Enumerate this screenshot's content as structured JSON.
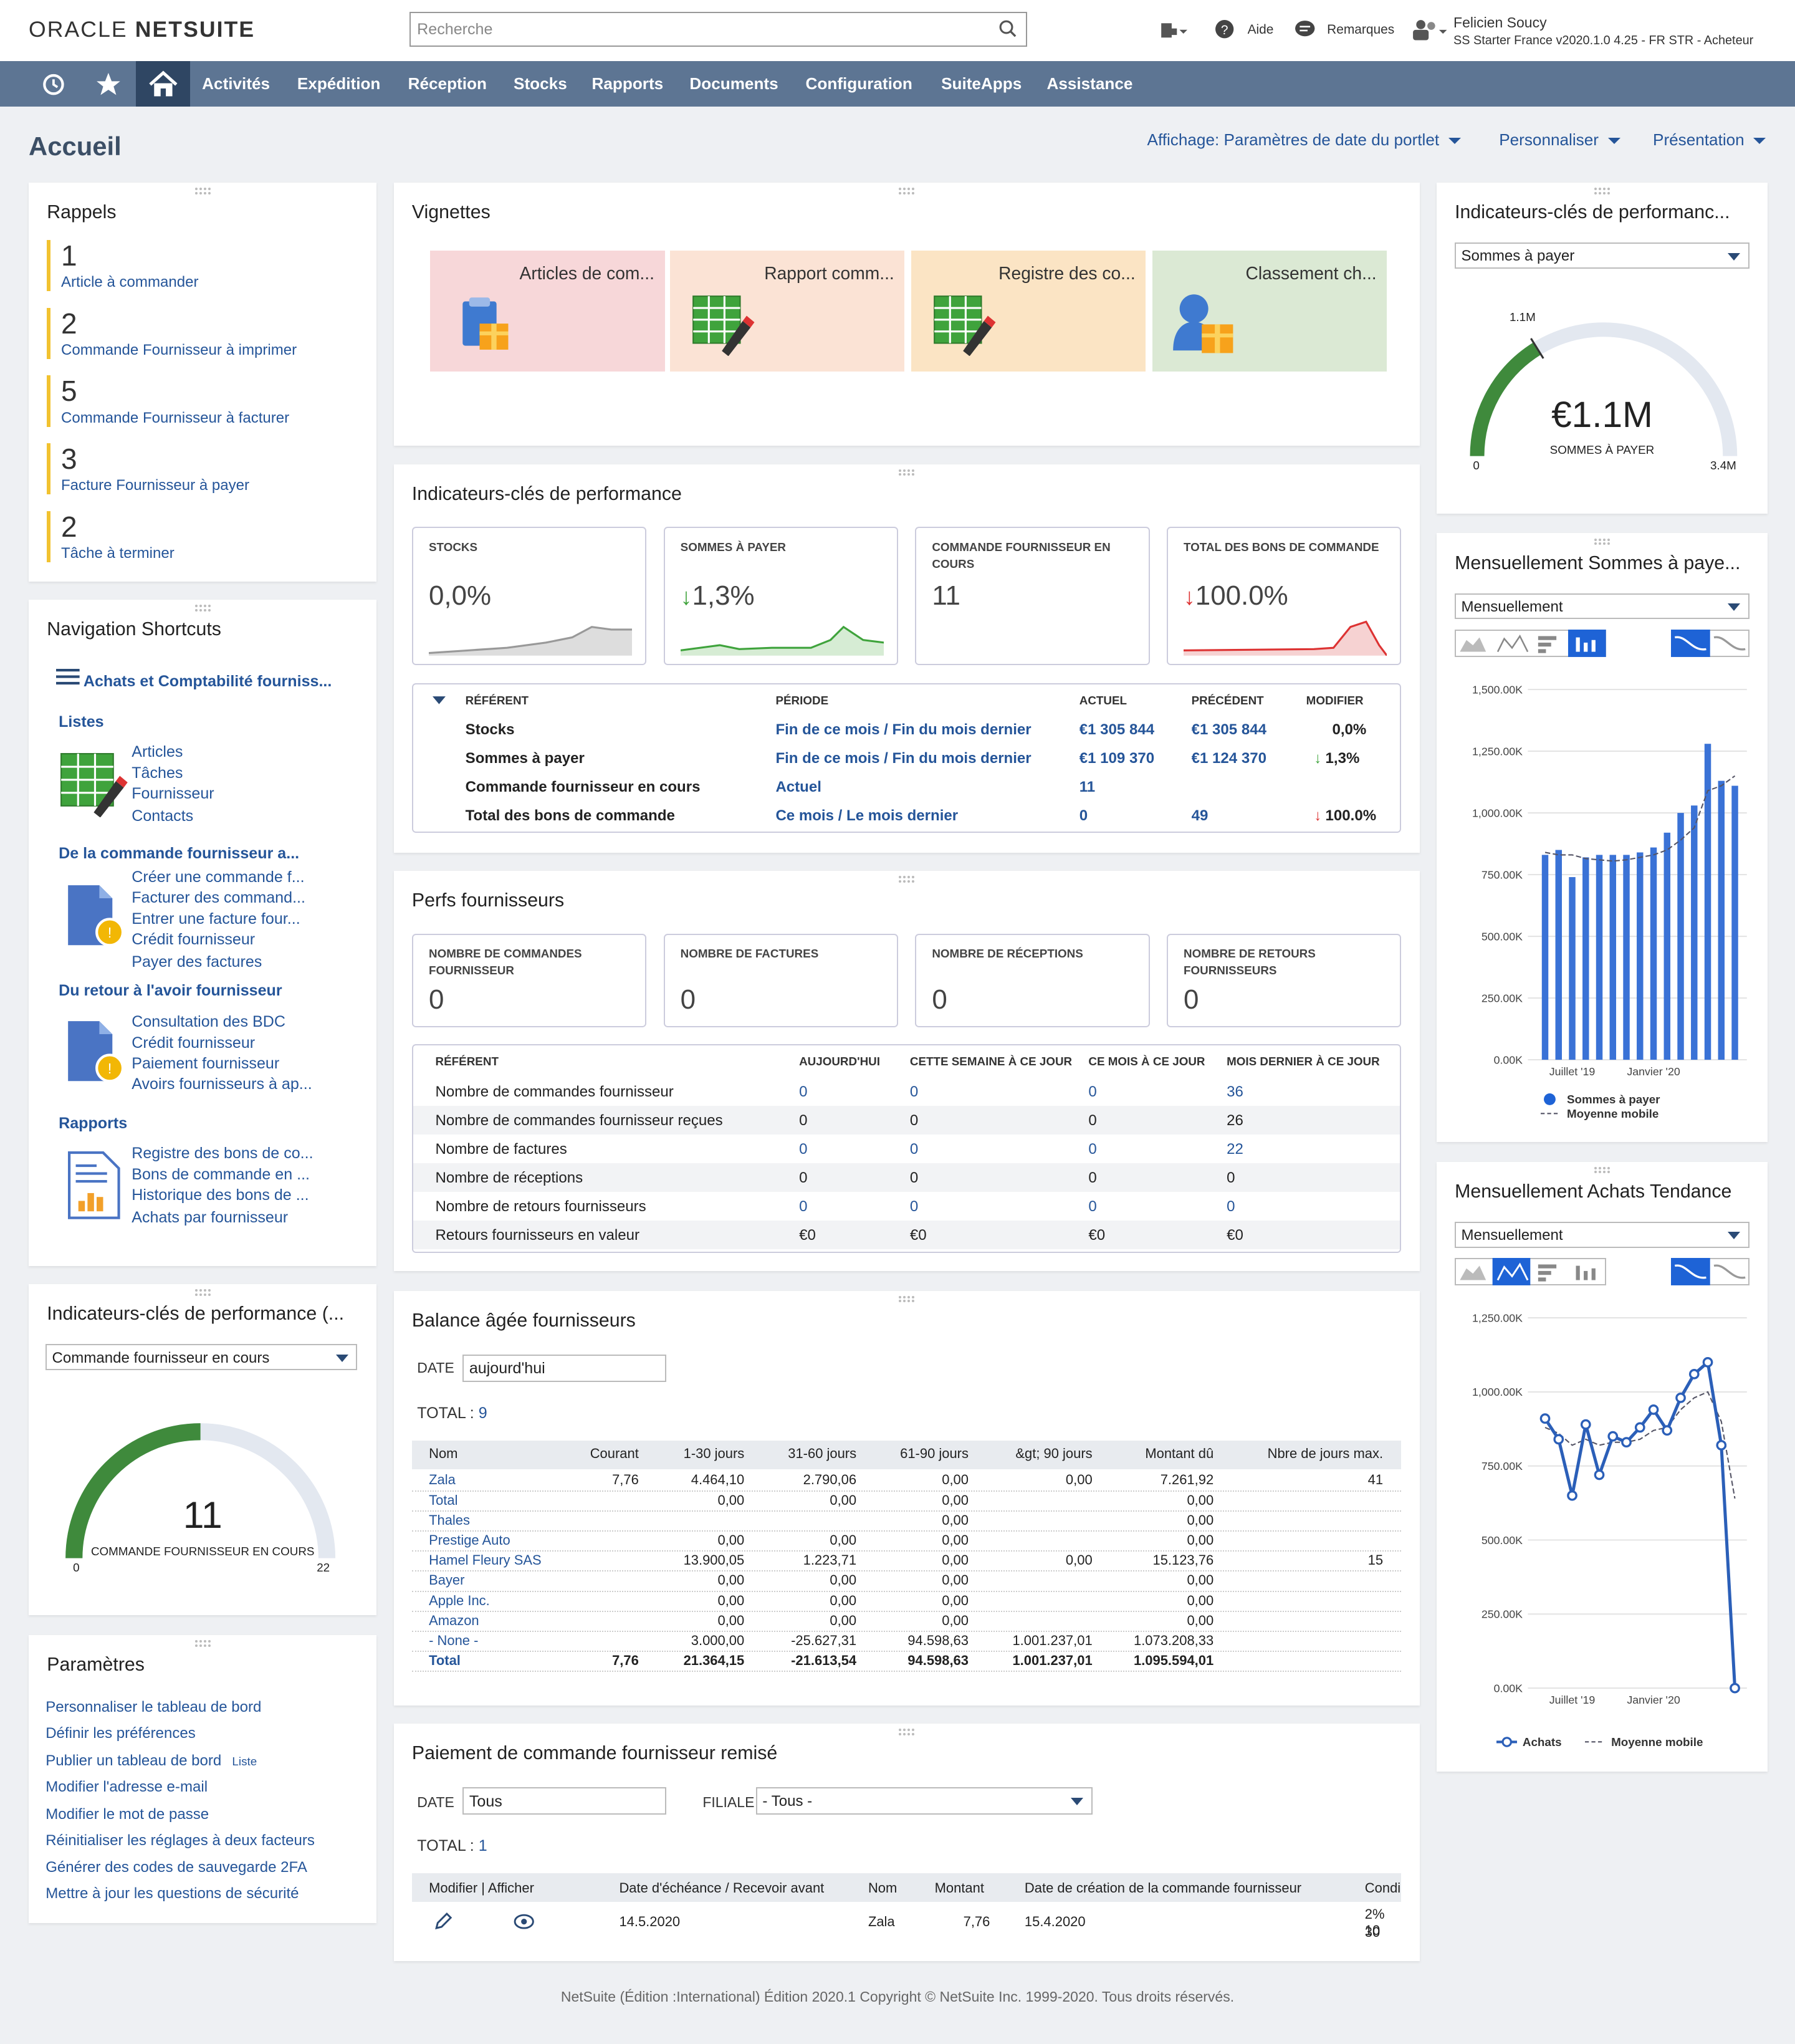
{
  "header": {
    "logo_oracle": "ORACLE",
    "logo_netsuite": "NETSUITE",
    "search_placeholder": "Recherche",
    "help": "Aide",
    "feedback": "Remarques",
    "user_name": "Felicien Soucy",
    "user_role": "SS Starter France v2020.1.0 4.25 - FR STR - Acheteur"
  },
  "nav": {
    "items": [
      "Activités",
      "Expédition",
      "Réception",
      "Stocks",
      "Rapports",
      "Documents",
      "Configuration",
      "SuiteApps",
      "Assistance"
    ]
  },
  "page": {
    "title": "Accueil",
    "view": "Affichage: Paramètres de date du portlet",
    "customize": "Personnaliser",
    "layout": "Présentation"
  },
  "reminders": {
    "title": "Rappels",
    "items": [
      {
        "n": "1",
        "t": "Article à commander"
      },
      {
        "n": "2",
        "t": "Commande Fournisseur à imprimer"
      },
      {
        "n": "5",
        "t": "Commande Fournisseur à facturer"
      },
      {
        "n": "3",
        "t": "Facture Fournisseur à payer"
      },
      {
        "n": "2",
        "t": "Tâche à terminer"
      }
    ]
  },
  "shortcuts": {
    "title": "Navigation Shortcuts",
    "group": "Achats et Comptabilité fourniss...",
    "s1": "Listes",
    "s1_items": [
      "Articles",
      "Tâches",
      "Fournisseur",
      "Contacts"
    ],
    "s2": "De la commande fournisseur a...",
    "s2_items": [
      "Créer une commande f...",
      "Facturer des command...",
      "Entrer une facture four...",
      "Crédit fournisseur",
      "Payer des factures"
    ],
    "s3": "Du retour à l'avoir fournisseur",
    "s3_items": [
      "Consultation des BDC",
      "Crédit fournisseur",
      "Paiement fournisseur",
      "Avoirs fournisseurs à ap..."
    ],
    "s4": "Rapports",
    "s4_items": [
      "Registre des bons de co...",
      "Bons de commande en ...",
      "Historique des bons de ...",
      "Achats par fournisseur"
    ]
  },
  "kpi_left": {
    "title": "Indicateurs-clés de performance (...",
    "select": "Commande fournisseur en cours",
    "value": "11",
    "label": "COMMANDE FOURNISSEUR EN COURS",
    "min": "0",
    "max": "22",
    "fraction": 0.5
  },
  "params": {
    "title": "Paramètres",
    "items": [
      "Personnaliser le tableau de bord",
      "Définir les préférences",
      "Publier un tableau de bord",
      "Modifier l'adresse e-mail",
      "Modifier le mot de passe",
      "Réinitialiser les réglages à deux facteurs",
      "Générer des codes de sauvegarde 2FA",
      "Mettre à jour les questions de sécurité"
    ],
    "list_tag": "Liste"
  },
  "tiles": {
    "title": "Vignettes",
    "items": [
      {
        "label": "Articles de com...",
        "color": "#f7d7d9"
      },
      {
        "label": "Rapport comm...",
        "color": "#fbe3d5"
      },
      {
        "label": "Registre des co...",
        "color": "#fbe4c4"
      },
      {
        "label": "Classement ch...",
        "color": "#dbe9d4"
      }
    ]
  },
  "kpi": {
    "title": "Indicateurs-clés de performance",
    "cards": [
      {
        "label": "STOCKS",
        "value": "0,0%",
        "arrow": ""
      },
      {
        "label": "SOMMES À PAYER",
        "value": "1,3%",
        "arrow": "↓"
      },
      {
        "label": "COMMANDE FOURNISSEUR EN COURS",
        "value": "11",
        "arrow": ""
      },
      {
        "label": "TOTAL DES BONS DE COMMANDE",
        "value": "100.0%",
        "arrow": "↓"
      }
    ],
    "headers": [
      "RÉFÉRENT",
      "PÉRIODE",
      "ACTUEL",
      "PRÉCÉDENT",
      "MODIFIER"
    ],
    "rows": [
      {
        "ref": "Stocks",
        "p1": "Fin de ce mois",
        "p2": "Fin du mois dernier",
        "act": "€1 305 844",
        "prev": "€1 305 844",
        "mod": "0,0%",
        "arrow": ""
      },
      {
        "ref": "Sommes à payer",
        "p1": "Fin de ce mois",
        "p2": "Fin du mois dernier",
        "act": "€1 109 370",
        "prev": "€1 124 370",
        "mod": "1,3%",
        "arrow": "↓"
      },
      {
        "ref": "Commande fournisseur en cours",
        "p1": "Actuel",
        "p2": "",
        "act": "11",
        "prev": "",
        "mod": "",
        "arrow": ""
      },
      {
        "ref": "Total des bons de commande",
        "p1": "Ce mois",
        "p2": "Le mois dernier",
        "act": "0",
        "prev": "49",
        "mod": "100.0%",
        "arrow": "↓"
      }
    ]
  },
  "perfs": {
    "title": "Perfs fournisseurs",
    "cards": [
      {
        "label": "NOMBRE DE COMMANDES FOURNISSEUR",
        "value": "0"
      },
      {
        "label": "NOMBRE DE FACTURES",
        "value": "0"
      },
      {
        "label": "NOMBRE DE RÉCEPTIONS",
        "value": "0"
      },
      {
        "label": "NOMBRE DE RETOURS FOURNISSEURS",
        "value": "0"
      }
    ],
    "headers": [
      "RÉFÉRENT",
      "AUJOURD'HUI",
      "CETTE SEMAINE À CE JOUR",
      "CE MOIS À CE JOUR",
      "MOIS DERNIER À CE JOUR"
    ],
    "rows": [
      [
        "Nombre de commandes fournisseur",
        "0",
        "0",
        "0",
        "36"
      ],
      [
        "Nombre de commandes fournisseur reçues",
        "0",
        "0",
        "0",
        "26"
      ],
      [
        "Nombre de factures",
        "0",
        "0",
        "0",
        "22"
      ],
      [
        "Nombre de réceptions",
        "0",
        "0",
        "0",
        "0"
      ],
      [
        "Nombre de retours fournisseurs",
        "0",
        "0",
        "0",
        "0"
      ],
      [
        "Retours fournisseurs en valeur",
        "€0",
        "€0",
        "€0",
        "€0"
      ]
    ]
  },
  "aging": {
    "title": "Balance âgée fournisseurs",
    "date_label": "DATE",
    "date_value": "aujourd'hui",
    "total_label": "TOTAL :",
    "total_value": "9",
    "headers": [
      "Nom",
      "Courant",
      "1-30 jours",
      "31-60 jours",
      "61-90 jours",
      "&gt; 90 jours",
      "Montant dû",
      "Nbre de jours max."
    ],
    "rows": [
      [
        "Zala",
        "7,76",
        "4.464,10",
        "2.790,06",
        "0,00",
        "0,00",
        "7.261,92",
        "41"
      ],
      [
        "Total",
        "",
        "0,00",
        "0,00",
        "0,00",
        "",
        "0,00",
        ""
      ],
      [
        "Thales",
        "",
        "",
        "",
        "0,00",
        "",
        "0,00",
        ""
      ],
      [
        "Prestige Auto",
        "",
        "0,00",
        "0,00",
        "0,00",
        "",
        "0,00",
        ""
      ],
      [
        "Hamel Fleury SAS",
        "",
        "13.900,05",
        "1.223,71",
        "0,00",
        "0,00",
        "15.123,76",
        "15"
      ],
      [
        "Bayer",
        "",
        "0,00",
        "0,00",
        "0,00",
        "",
        "0,00",
        ""
      ],
      [
        "Apple Inc.",
        "",
        "0,00",
        "0,00",
        "0,00",
        "",
        "0,00",
        ""
      ],
      [
        "Amazon",
        "",
        "0,00",
        "0,00",
        "0,00",
        "",
        "0,00",
        ""
      ],
      [
        "- None -",
        "",
        "3.000,00",
        "-25.627,31",
        "94.598,63",
        "1.001.237,01",
        "1.073.208,33",
        ""
      ],
      [
        "Total",
        "7,76",
        "21.364,15",
        "-21.613,54",
        "94.598,63",
        "1.001.237,01",
        "1.095.594,01",
        ""
      ]
    ]
  },
  "payment": {
    "title": "Paiement de commande fournisseur remisé",
    "date_label": "DATE",
    "date_value": "Tous",
    "sub_label": "FILIALE",
    "sub_value": "- Tous -",
    "total_label": "TOTAL :",
    "total_value": "1",
    "headers": [
      "Modifier | Afficher",
      "Date d'échéance / Recevoir avant",
      "Nom",
      "Montant",
      "Date de création de la commande fournisseur",
      "Condi"
    ],
    "row": {
      "due": "14.5.2020",
      "name": "Zala",
      "amount": "7,76",
      "created": "15.4.2020",
      "cond1": "2% 10",
      "cond2": "30"
    }
  },
  "kpi_right": {
    "title": "Indicateurs-clés de performanc...",
    "select": "Sommes à payer",
    "value": "€1.1M",
    "label": "SOMMES À PAYER",
    "min": "0",
    "max": "3.4M",
    "target": "1.1M",
    "fraction": 0.324
  },
  "monthly_pay": {
    "title": "Mensuellement Sommes à paye...",
    "select": "Mensuellement"
  },
  "monthly_buy": {
    "title": "Mensuellement Achats Tendance",
    "select": "Mensuellement"
  },
  "footer": "NetSuite (Édition :International) Édition 2020.1 Copyright © NetSuite Inc. 1999-2020. Tous droits réservés.",
  "chart_data": [
    {
      "type": "bar",
      "title": "Mensuellement Sommes à paye...",
      "categories": [
        "",
        "",
        "",
        "",
        "",
        "",
        "",
        "",
        "",
        "",
        "",
        "",
        "",
        "",
        ""
      ],
      "x_tick_labels": [
        "Juillet '19",
        "Janvier '20"
      ],
      "series": [
        {
          "name": "Sommes à payer",
          "values": [
            830,
            850,
            740,
            820,
            830,
            830,
            830,
            840,
            860,
            920,
            1000,
            1030,
            1280,
            1130,
            1110
          ]
        },
        {
          "name": "Moyenne mobile",
          "values": [
            840,
            830,
            830,
            815,
            810,
            805,
            810,
            820,
            830,
            850,
            890,
            940,
            1090,
            1110,
            1150
          ]
        }
      ],
      "yticks": [
        "0.00K",
        "250.00K",
        "500.00K",
        "750.00K",
        "1,000.00K",
        "1,250.00K",
        "1,500.00K"
      ],
      "ylim": [
        0,
        1500
      ]
    },
    {
      "type": "line",
      "title": "Mensuellement Achats Tendance",
      "categories": [
        "",
        "",
        "",
        "",
        "",
        "",
        "",
        "",
        "",
        "",
        "",
        "",
        "",
        "",
        ""
      ],
      "x_tick_labels": [
        "Juillet '19",
        "Janvier '20"
      ],
      "series": [
        {
          "name": "Achats",
          "values": [
            910,
            840,
            650,
            890,
            720,
            850,
            830,
            880,
            940,
            870,
            980,
            1060,
            1100,
            820,
            0
          ]
        },
        {
          "name": "Moyenne mobile",
          "values": [
            880,
            860,
            820,
            840,
            820,
            830,
            830,
            840,
            870,
            880,
            940,
            980,
            1000,
            900,
            640
          ]
        }
      ],
      "yticks": [
        "0.00K",
        "250.00K",
        "500.00K",
        "750.00K",
        "1,000.00K",
        "1,250.00K"
      ],
      "ylim": [
        0,
        1250
      ]
    }
  ],
  "colors": {
    "nav": "#5d7593",
    "link": "#255599",
    "gauge": "#3f8a3c",
    "bar": "#3a72d6"
  }
}
